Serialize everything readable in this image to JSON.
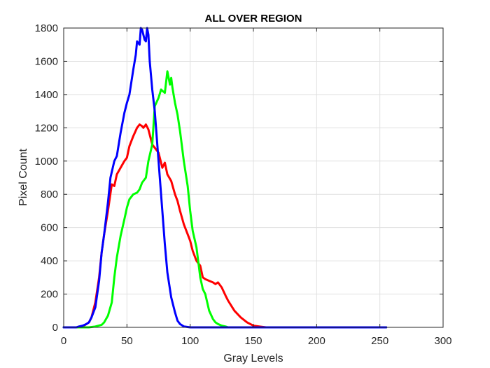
{
  "chart_data": {
    "type": "line",
    "title": "ALL OVER REGION",
    "xlabel": "Gray Levels",
    "ylabel": "Pixel Count",
    "xlim": [
      0,
      300
    ],
    "ylim": [
      0,
      1800
    ],
    "xticks": [
      0,
      50,
      100,
      150,
      200,
      250,
      300
    ],
    "yticks": [
      0,
      200,
      400,
      600,
      800,
      1000,
      1200,
      1400,
      1600,
      1800
    ],
    "xtick_labels": [
      "0",
      "50",
      "100",
      "150",
      "200",
      "250",
      "300"
    ],
    "ytick_labels": [
      "0",
      "200",
      "400",
      "600",
      "800",
      "1000",
      "1200",
      "1400",
      "1600",
      "1800"
    ],
    "grid": true,
    "series": [
      {
        "name": "Red",
        "color": "#ff0000",
        "x": [
          0,
          10,
          15,
          20,
          22,
          25,
          28,
          30,
          32,
          35,
          38,
          40,
          42,
          45,
          48,
          50,
          52,
          55,
          58,
          60,
          62,
          63,
          65,
          67,
          70,
          72,
          75,
          78,
          80,
          82,
          85,
          88,
          90,
          92,
          95,
          98,
          100,
          102,
          105,
          108,
          110,
          112,
          115,
          118,
          120,
          122,
          125,
          128,
          130,
          135,
          140,
          145,
          150,
          155,
          160,
          180,
          200,
          220,
          240,
          255
        ],
        "y": [
          0,
          0,
          5,
          30,
          60,
          150,
          300,
          450,
          560,
          700,
          860,
          850,
          920,
          960,
          1000,
          1020,
          1090,
          1150,
          1200,
          1220,
          1210,
          1200,
          1220,
          1190,
          1100,
          1080,
          1050,
          960,
          990,
          920,
          880,
          800,
          760,
          700,
          620,
          560,
          520,
          460,
          400,
          370,
          300,
          290,
          280,
          270,
          260,
          270,
          240,
          190,
          160,
          100,
          60,
          30,
          10,
          5,
          0,
          0,
          0,
          0,
          0,
          0
        ]
      },
      {
        "name": "Green",
        "color": "#00ff00",
        "x": [
          0,
          20,
          25,
          30,
          32,
          35,
          38,
          40,
          42,
          45,
          48,
          50,
          52,
          55,
          58,
          60,
          62,
          65,
          67,
          70,
          72,
          75,
          77,
          80,
          82,
          84,
          85,
          86,
          88,
          90,
          92,
          95,
          98,
          100,
          102,
          105,
          108,
          110,
          112,
          115,
          118,
          120,
          122,
          125,
          128,
          130,
          135,
          140,
          160,
          200,
          255
        ],
        "y": [
          0,
          0,
          5,
          15,
          30,
          70,
          150,
          300,
          420,
          550,
          650,
          720,
          770,
          800,
          810,
          830,
          870,
          900,
          1000,
          1100,
          1330,
          1380,
          1430,
          1410,
          1540,
          1460,
          1500,
          1440,
          1350,
          1280,
          1180,
          1000,
          850,
          700,
          580,
          480,
          300,
          230,
          200,
          100,
          50,
          30,
          20,
          10,
          5,
          0,
          0,
          0,
          0,
          0,
          0
        ]
      },
      {
        "name": "Blue",
        "color": "#0000ff",
        "x": [
          0,
          10,
          12,
          15,
          18,
          20,
          22,
          25,
          28,
          30,
          32,
          35,
          37,
          40,
          42,
          45,
          48,
          50,
          52,
          55,
          57,
          58,
          60,
          61,
          62,
          63,
          64,
          65,
          66,
          67,
          68,
          70,
          72,
          75,
          78,
          80,
          82,
          85,
          88,
          90,
          92,
          95,
          98,
          100,
          105,
          110,
          120,
          130,
          150,
          200,
          255
        ],
        "y": [
          0,
          0,
          5,
          10,
          20,
          30,
          60,
          120,
          280,
          450,
          560,
          750,
          900,
          1000,
          1030,
          1170,
          1290,
          1350,
          1400,
          1550,
          1640,
          1720,
          1700,
          1800,
          1790,
          1760,
          1730,
          1720,
          1800,
          1760,
          1600,
          1430,
          1300,
          1000,
          700,
          500,
          330,
          180,
          90,
          40,
          20,
          5,
          2,
          0,
          0,
          0,
          0,
          0,
          0,
          0,
          0
        ]
      }
    ]
  }
}
